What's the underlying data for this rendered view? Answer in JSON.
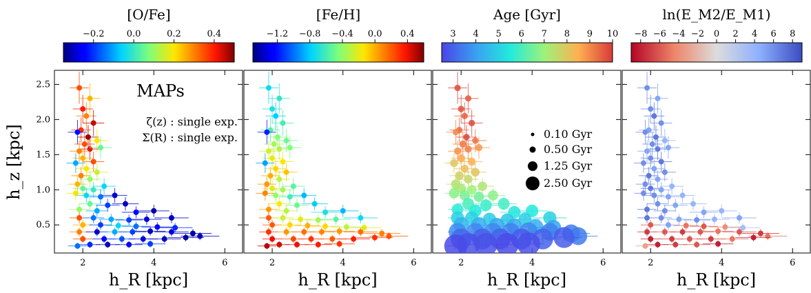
{
  "chart_data": [
    {
      "type": "scatter",
      "panel": "O/Fe",
      "colorbar": {
        "label": "[O/Fe]",
        "ticks": [
          -0.2,
          0.0,
          0.2,
          0.4
        ],
        "tick_labels": [
          "−0.2",
          "0.0",
          "0.2",
          "0.4"
        ],
        "range": [
          -0.35,
          0.5
        ],
        "colormap": "jet"
      },
      "annotations": {
        "title": "MAPs",
        "line1": "ζ(z) : single exp.",
        "line2": "Σ(R) : single exp."
      },
      "xlabel": "h_R [kpc]",
      "ylabel": "h_z [kpc]",
      "xlim": [
        1.2,
        6.5
      ],
      "ylim": [
        0.1,
        2.7
      ],
      "xticks": [
        2,
        4,
        6
      ],
      "yticks": [
        0.5,
        1.0,
        1.5,
        2.0,
        2.5
      ],
      "x_tick_labels": [
        "2",
        "4",
        "6"
      ],
      "y_tick_labels": [
        "0.5",
        "1.0",
        "1.5",
        "2.0",
        "2.5"
      ]
    },
    {
      "type": "scatter",
      "panel": "Fe/H",
      "colorbar": {
        "label": "[Fe/H]",
        "ticks": [
          -1.2,
          -0.8,
          -0.4,
          0.0,
          0.4
        ],
        "tick_labels": [
          "−1.2",
          "−0.8",
          "−0.4",
          "0.0",
          "0.4"
        ],
        "range": [
          -1.5,
          0.6
        ],
        "colormap": "jet"
      },
      "xlabel": "h_R [kpc]",
      "xlim": [
        1.2,
        6.5
      ],
      "ylim": [
        0.1,
        2.7
      ],
      "xticks": [
        2,
        4,
        6
      ],
      "x_tick_labels": [
        "2",
        "4",
        "6"
      ]
    },
    {
      "type": "scatter",
      "panel": "Age",
      "colorbar": {
        "label": "Age [Gyr]",
        "ticks": [
          3,
          4,
          5,
          6,
          7,
          8,
          9,
          10
        ],
        "tick_labels": [
          "3",
          "4",
          "5",
          "6",
          "7",
          "8",
          "9",
          "10"
        ],
        "range": [
          2.5,
          10
        ],
        "colormap": "rainbow"
      },
      "size_legend": {
        "items": [
          "0.10 Gyr",
          "0.50 Gyr",
          "1.25 Gyr",
          "2.50 Gyr"
        ],
        "values": [
          0.1,
          0.5,
          1.25,
          2.5
        ]
      },
      "xlabel": "h_R [kpc]",
      "xlim": [
        1.2,
        6.5
      ],
      "ylim": [
        0.1,
        2.7
      ],
      "xticks": [
        2,
        4,
        6
      ],
      "x_tick_labels": [
        "2",
        "4",
        "6"
      ]
    },
    {
      "type": "scatter",
      "panel": "lnE",
      "colorbar": {
        "label": "ln(E_M2/E_M1)",
        "ticks": [
          -8,
          -6,
          -4,
          -2,
          0,
          2,
          4,
          6,
          8
        ],
        "tick_labels": [
          "−8",
          "−6",
          "−4",
          "−2",
          "0",
          "2",
          "4",
          "6",
          "8"
        ],
        "range": [
          -9,
          9
        ],
        "colormap": "coolwarm_r"
      },
      "xlabel": "h_R [kpc]",
      "xlim": [
        1.2,
        6.5
      ],
      "ylim": [
        0.1,
        2.7
      ],
      "xticks": [
        2,
        4,
        6
      ],
      "x_tick_labels": [
        "2",
        "4",
        "6"
      ]
    }
  ],
  "map_points": [
    {
      "hR": 1.9,
      "hz": 2.45,
      "ofe": 0.35,
      "feh": -0.75,
      "age": 9.8,
      "lnE": 6,
      "size": 0.3
    },
    {
      "hR": 2.2,
      "hz": 2.3,
      "ofe": 0.25,
      "feh": -0.65,
      "age": 9.6,
      "lnE": 5,
      "size": 0.3
    },
    {
      "hR": 2.0,
      "hz": 2.15,
      "ofe": 0.4,
      "feh": -0.7,
      "age": 9.7,
      "lnE": 6,
      "size": 0.3
    },
    {
      "hR": 2.1,
      "hz": 2.05,
      "ofe": 0.3,
      "feh": -0.8,
      "age": 9.5,
      "lnE": 7,
      "size": 0.3
    },
    {
      "hR": 2.3,
      "hz": 1.95,
      "ofe": 0.45,
      "feh": -0.6,
      "age": 9.8,
      "lnE": 6,
      "size": 0.3
    },
    {
      "hR": 1.95,
      "hz": 1.85,
      "ofe": 0.38,
      "feh": -0.55,
      "age": 9.4,
      "lnE": 5,
      "size": 0.3
    },
    {
      "hR": 2.15,
      "hz": 1.75,
      "ofe": 0.48,
      "feh": -0.45,
      "age": 9.9,
      "lnE": 7,
      "size": 0.3
    },
    {
      "hR": 1.85,
      "hz": 1.82,
      "ofe": -0.25,
      "feh": -1.2,
      "age": 9.0,
      "lnE": 6,
      "size": 0.3
    },
    {
      "hR": 2.4,
      "hz": 1.7,
      "ofe": 0.2,
      "feh": -0.5,
      "age": 9.3,
      "lnE": 4,
      "size": 0.3
    },
    {
      "hR": 2.05,
      "hz": 1.65,
      "ofe": 0.35,
      "feh": -0.35,
      "age": 9.2,
      "lnE": 6,
      "size": 0.4
    },
    {
      "hR": 2.2,
      "hz": 1.58,
      "ofe": 0.42,
      "feh": -0.3,
      "age": 9.1,
      "lnE": 7,
      "size": 0.4
    },
    {
      "hR": 1.9,
      "hz": 1.55,
      "ofe": 0.3,
      "feh": -0.25,
      "age": 8.9,
      "lnE": 5,
      "size": 0.4
    },
    {
      "hR": 2.5,
      "hz": 1.6,
      "ofe": 0.05,
      "feh": -0.45,
      "age": 8.8,
      "lnE": 5,
      "size": 0.4
    },
    {
      "hR": 2.0,
      "hz": 1.45,
      "ofe": 0.25,
      "feh": -0.2,
      "age": 8.6,
      "lnE": 6,
      "size": 0.5
    },
    {
      "hR": 2.3,
      "hz": 1.4,
      "ofe": 0.35,
      "feh": -0.15,
      "age": 8.5,
      "lnE": 7,
      "size": 0.5
    },
    {
      "hR": 1.8,
      "hz": 1.38,
      "ofe": -0.1,
      "feh": -0.9,
      "age": 8.0,
      "lnE": 6,
      "size": 0.5
    },
    {
      "hR": 2.1,
      "hz": 1.3,
      "ofe": 0.2,
      "feh": -0.1,
      "age": 8.2,
      "lnE": 5,
      "size": 0.5
    },
    {
      "hR": 2.4,
      "hz": 1.25,
      "ofe": 0.15,
      "feh": -0.05,
      "age": 8.0,
      "lnE": 6,
      "size": 0.6
    },
    {
      "hR": 1.95,
      "hz": 1.2,
      "ofe": 0.3,
      "feh": 0.0,
      "age": 7.8,
      "lnE": 7,
      "size": 0.6
    },
    {
      "hR": 2.2,
      "hz": 1.15,
      "ofe": 0.1,
      "feh": -0.3,
      "age": 7.6,
      "lnE": 5,
      "size": 0.6
    },
    {
      "hR": 1.85,
      "hz": 1.08,
      "ofe": 0.25,
      "feh": 0.05,
      "age": 7.4,
      "lnE": 6,
      "size": 0.7
    },
    {
      "hR": 2.0,
      "hz": 1.02,
      "ofe": 0.05,
      "feh": -0.2,
      "age": 7.2,
      "lnE": 7,
      "size": 0.7
    },
    {
      "hR": 2.3,
      "hz": 1.0,
      "ofe": 0.0,
      "feh": -0.35,
      "age": 7.0,
      "lnE": 5,
      "size": 0.7
    },
    {
      "hR": 2.6,
      "hz": 1.05,
      "ofe": -0.05,
      "feh": -0.55,
      "age": 7.3,
      "lnE": 4,
      "size": 0.7
    },
    {
      "hR": 1.8,
      "hz": 0.95,
      "ofe": 0.2,
      "feh": 0.1,
      "age": 6.8,
      "lnE": 6,
      "size": 0.8
    },
    {
      "hR": 2.1,
      "hz": 0.92,
      "ofe": -0.05,
      "feh": -0.4,
      "age": 6.6,
      "lnE": 6,
      "size": 0.8
    },
    {
      "hR": 2.5,
      "hz": 0.9,
      "ofe": -0.15,
      "feh": -0.6,
      "age": 6.5,
      "lnE": 5,
      "size": 0.8
    },
    {
      "hR": 2.9,
      "hz": 0.92,
      "ofe": -0.28,
      "feh": -0.85,
      "age": 6.8,
      "lnE": 4,
      "size": 0.8
    },
    {
      "hR": 2.2,
      "hz": 0.8,
      "ofe": 0.05,
      "feh": -0.15,
      "age": 6.0,
      "lnE": 6,
      "size": 1.0
    },
    {
      "hR": 2.7,
      "hz": 0.78,
      "ofe": -0.2,
      "feh": -0.5,
      "age": 5.8,
      "lnE": 5,
      "size": 1.0
    },
    {
      "hR": 3.2,
      "hz": 0.8,
      "ofe": -0.3,
      "feh": -0.8,
      "age": 5.9,
      "lnE": 4,
      "size": 1.0
    },
    {
      "hR": 1.9,
      "hz": 0.72,
      "ofe": 0.1,
      "feh": 0.05,
      "age": 5.6,
      "lnE": 7,
      "size": 1.0
    },
    {
      "hR": 2.4,
      "hz": 0.7,
      "ofe": -0.1,
      "feh": -0.3,
      "age": 5.5,
      "lnE": 6,
      "size": 1.1
    },
    {
      "hR": 3.5,
      "hz": 0.68,
      "ofe": -0.25,
      "feh": -0.7,
      "age": 5.4,
      "lnE": 5,
      "size": 1.1
    },
    {
      "hR": 4.0,
      "hz": 0.7,
      "ofe": -0.32,
      "feh": -0.85,
      "age": 5.5,
      "lnE": 4,
      "size": 1.1
    },
    {
      "hR": 1.9,
      "hz": 0.6,
      "ofe": 0.35,
      "feh": 0.2,
      "age": 5.0,
      "lnE": 7,
      "size": 1.2
    },
    {
      "hR": 2.3,
      "hz": 0.6,
      "ofe": -0.15,
      "feh": -0.25,
      "age": 5.0,
      "lnE": 6,
      "size": 1.2
    },
    {
      "hR": 2.8,
      "hz": 0.58,
      "ofe": -0.1,
      "feh": -0.2,
      "age": 4.9,
      "lnE": 5,
      "size": 1.2
    },
    {
      "hR": 3.3,
      "hz": 0.57,
      "ofe": -0.2,
      "feh": -0.35,
      "age": 4.8,
      "lnE": 6,
      "size": 1.2
    },
    {
      "hR": 3.8,
      "hz": 0.58,
      "ofe": -0.28,
      "feh": -0.55,
      "age": 4.9,
      "lnE": 4,
      "size": 1.2
    },
    {
      "hR": 4.5,
      "hz": 0.6,
      "ofe": -0.3,
      "feh": -0.75,
      "age": 5.0,
      "lnE": 5,
      "size": 1.2
    },
    {
      "hR": 2.0,
      "hz": 0.5,
      "ofe": 0.25,
      "feh": 0.2,
      "age": 4.4,
      "lnE": -6,
      "size": 1.5
    },
    {
      "hR": 2.5,
      "hz": 0.5,
      "ofe": -0.2,
      "feh": -0.1,
      "age": 4.3,
      "lnE": 5,
      "size": 1.5
    },
    {
      "hR": 3.0,
      "hz": 0.49,
      "ofe": -0.05,
      "feh": 0.0,
      "age": 4.2,
      "lnE": -5,
      "size": 1.5
    },
    {
      "hR": 3.5,
      "hz": 0.48,
      "ofe": -0.15,
      "feh": -0.1,
      "age": 4.2,
      "lnE": -6,
      "size": 1.5
    },
    {
      "hR": 4.1,
      "hz": 0.47,
      "ofe": -0.25,
      "feh": -0.3,
      "age": 4.3,
      "lnE": -4,
      "size": 1.5
    },
    {
      "hR": 4.6,
      "hz": 0.46,
      "ofe": -0.22,
      "feh": -0.2,
      "age": 4.1,
      "lnE": 3,
      "size": 1.5
    },
    {
      "hR": 1.9,
      "hz": 0.4,
      "ofe": 0.3,
      "feh": 0.3,
      "age": 3.7,
      "lnE": -7,
      "size": 1.8
    },
    {
      "hR": 2.4,
      "hz": 0.4,
      "ofe": -0.3,
      "feh": 0.05,
      "age": 3.6,
      "lnE": -6,
      "size": 1.8
    },
    {
      "hR": 2.9,
      "hz": 0.4,
      "ofe": -0.1,
      "feh": 0.15,
      "age": 3.6,
      "lnE": -7,
      "size": 1.8
    },
    {
      "hR": 3.4,
      "hz": 0.4,
      "ofe": -0.2,
      "feh": 0.1,
      "age": 3.5,
      "lnE": -6,
      "size": 1.8
    },
    {
      "hR": 3.9,
      "hz": 0.41,
      "ofe": -0.3,
      "feh": 0.05,
      "age": 3.6,
      "lnE": -5,
      "size": 1.8
    },
    {
      "hR": 4.5,
      "hz": 0.4,
      "ofe": -0.28,
      "feh": 0.15,
      "age": 3.5,
      "lnE": -6,
      "size": 1.8
    },
    {
      "hR": 5.1,
      "hz": 0.38,
      "ofe": -0.32,
      "feh": 0.1,
      "age": 3.4,
      "lnE": -7,
      "size": 1.8
    },
    {
      "hR": 5.3,
      "hz": 0.34,
      "ofe": -0.3,
      "feh": 0.2,
      "age": 3.4,
      "lnE": -5,
      "size": 1.8
    },
    {
      "hR": 2.0,
      "hz": 0.3,
      "ofe": 0.35,
      "feh": 0.4,
      "age": 3.1,
      "lnE": -8,
      "size": 2.2
    },
    {
      "hR": 2.6,
      "hz": 0.3,
      "ofe": -0.25,
      "feh": 0.25,
      "age": 3.0,
      "lnE": -7,
      "size": 2.2
    },
    {
      "hR": 3.1,
      "hz": 0.3,
      "ofe": -0.18,
      "feh": 0.3,
      "age": 3.0,
      "lnE": -6,
      "size": 2.2
    },
    {
      "hR": 3.7,
      "hz": 0.3,
      "ofe": -0.28,
      "feh": 0.2,
      "age": 2.9,
      "lnE": -7,
      "size": 2.2
    },
    {
      "hR": 4.3,
      "hz": 0.3,
      "ofe": -0.3,
      "feh": 0.35,
      "age": 3.0,
      "lnE": -5,
      "size": 2.2
    },
    {
      "hR": 4.9,
      "hz": 0.32,
      "ofe": -0.33,
      "feh": 0.3,
      "age": 2.9,
      "lnE": -8,
      "size": 2.2
    },
    {
      "hR": 2.2,
      "hz": 0.22,
      "ofe": -0.22,
      "feh": 0.45,
      "age": 2.7,
      "lnE": -8,
      "size": 2.5
    },
    {
      "hR": 2.7,
      "hz": 0.22,
      "ofe": -0.3,
      "feh": 0.4,
      "age": 2.7,
      "lnE": -7,
      "size": 2.5
    },
    {
      "hR": 3.3,
      "hz": 0.22,
      "ofe": -0.25,
      "feh": 0.35,
      "age": 2.6,
      "lnE": -6,
      "size": 2.5
    },
    {
      "hR": 3.9,
      "hz": 0.23,
      "ofe": -0.2,
      "feh": 0.3,
      "age": 2.7,
      "lnE": -8,
      "size": 2.5
    },
    {
      "hR": 1.85,
      "hz": 0.2,
      "ofe": -0.15,
      "feh": 0.5,
      "age": 2.6,
      "lnE": -3,
      "size": 2.5
    }
  ]
}
